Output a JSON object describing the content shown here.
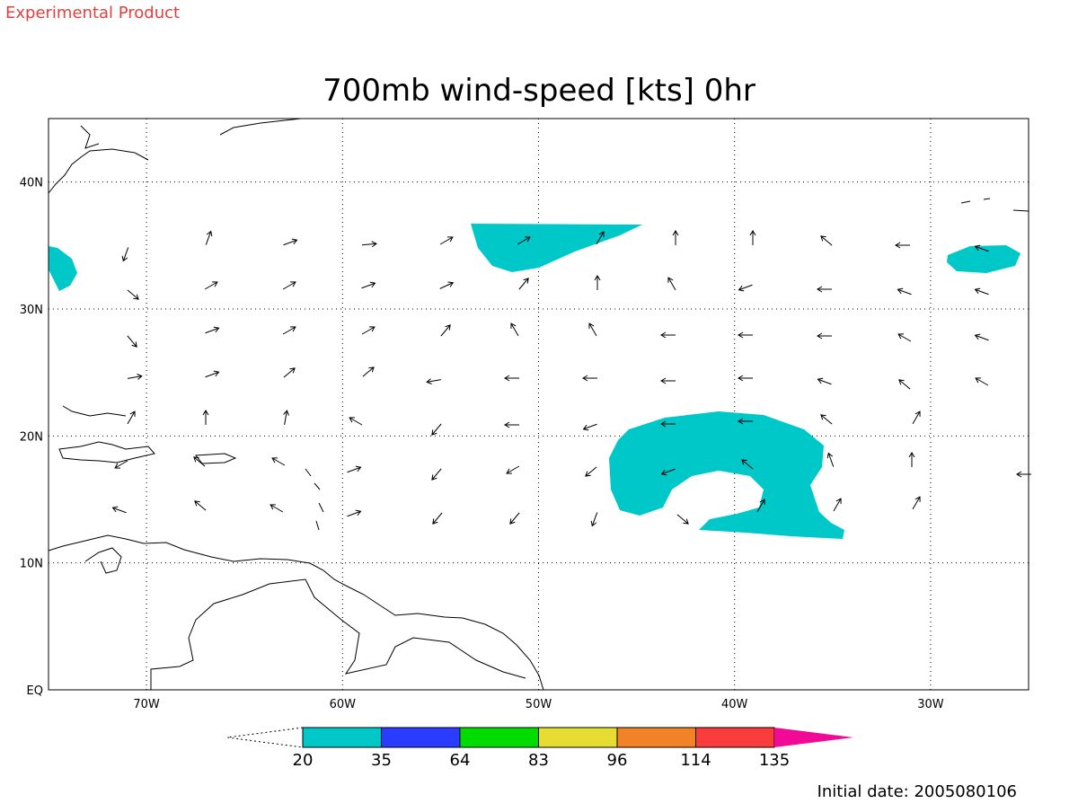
{
  "header": {
    "label": "Experimental Product"
  },
  "title": "700mb wind-speed [kts] 0hr",
  "map": {
    "lon_labels": [
      "70W",
      "60W",
      "50W",
      "40W",
      "30W"
    ],
    "lat_labels": [
      "EQ",
      "10N",
      "20N",
      "30N",
      "40N"
    ],
    "shade_color": "#00c8c8"
  },
  "legend": {
    "labels": [
      "20",
      "35",
      "64",
      "83",
      "96",
      "114",
      "135"
    ],
    "colors": [
      "#00c8c8",
      "#2a3cff",
      "#00dc00",
      "#e6dc32",
      "#f08228",
      "#fa3c3c",
      "#f00a96"
    ]
  },
  "footer": {
    "label": "Initial date: 2005080106"
  }
}
